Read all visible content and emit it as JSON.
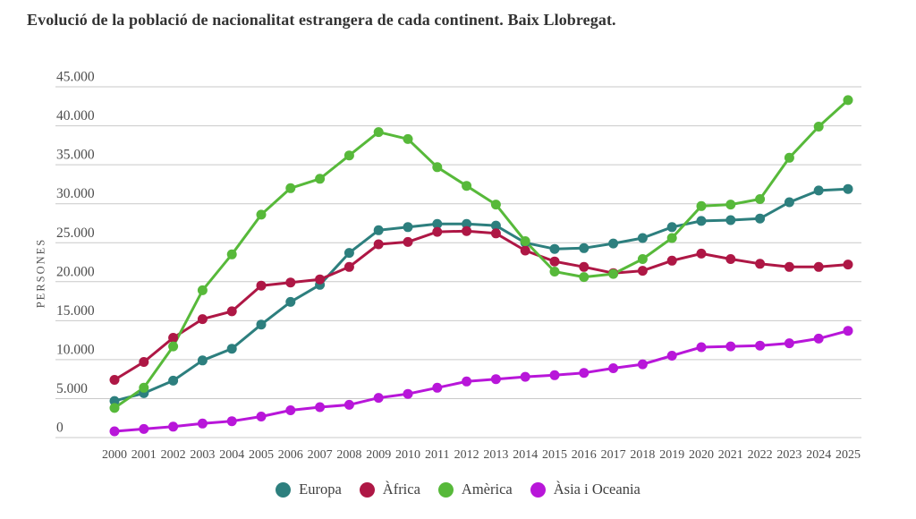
{
  "title": "Evolució de la població de nacionalitat estrangera de cada continent. Baix Llobregat.",
  "y_axis": {
    "label": "PERSONES",
    "tick_labels": [
      "0",
      "5.000",
      "10.000",
      "15.000",
      "20.000",
      "25.000",
      "30.000",
      "35.000",
      "40.000",
      "45.000"
    ]
  },
  "x_axis": {
    "tick_labels": [
      "2000",
      "2001",
      "2002",
      "2003",
      "2004",
      "2005",
      "2006",
      "2007",
      "2008",
      "2009",
      "2010",
      "2011",
      "2012",
      "2013",
      "2014",
      "2015",
      "2016",
      "2017",
      "2018",
      "2019",
      "2020",
      "2021",
      "2022",
      "2023",
      "2024",
      "2025"
    ]
  },
  "colors": {
    "grid": "#c9c9c9",
    "tick_text": "#4d4d4d",
    "europa": "#2d7f7e",
    "africa": "#ae1745",
    "america": "#57b93a",
    "asia_oceania": "#b816d9"
  },
  "chart_data": {
    "type": "line",
    "title": "Evolució de la població de nacionalitat estrangera de cada continent. Baix Llobregat.",
    "xlabel": "",
    "ylabel": "PERSONES",
    "x": [
      2000,
      2001,
      2002,
      2003,
      2004,
      2005,
      2006,
      2007,
      2008,
      2009,
      2010,
      2011,
      2012,
      2013,
      2014,
      2015,
      2016,
      2017,
      2018,
      2019,
      2020,
      2021,
      2022,
      2023,
      2024,
      2025
    ],
    "ylim": [
      0,
      45000
    ],
    "ytick_step": 5000,
    "grid": true,
    "legend_position": "bottom",
    "series": [
      {
        "name": "Europa",
        "color": "#2d7f7e",
        "values": [
          4700,
          5700,
          7300,
          9900,
          11400,
          14500,
          17400,
          19600,
          23700,
          26600,
          27000,
          27400,
          27400,
          27200,
          25000,
          24200,
          24300,
          24900,
          25600,
          27000,
          27800,
          27900,
          28100,
          30200,
          31700,
          31900
        ]
      },
      {
        "name": "Àfrica",
        "color": "#ae1745",
        "values": [
          7400,
          9700,
          12800,
          15200,
          16200,
          19500,
          19900,
          20300,
          21900,
          24800,
          25100,
          26400,
          26500,
          26200,
          24000,
          22600,
          21900,
          21100,
          21400,
          22700,
          23600,
          22900,
          22300,
          21900,
          21900,
          22200
        ]
      },
      {
        "name": "Amèrica",
        "color": "#57b93a",
        "values": [
          3800,
          6400,
          11700,
          18900,
          23500,
          28600,
          32000,
          33200,
          36200,
          39200,
          38300,
          34700,
          32300,
          29900,
          25200,
          21300,
          20600,
          21000,
          22900,
          25600,
          29700,
          29900,
          30600,
          35900,
          39900,
          43300
        ]
      },
      {
        "name": "Àsia i Oceania",
        "color": "#b816d9",
        "values": [
          800,
          1100,
          1400,
          1800,
          2100,
          2700,
          3500,
          3900,
          4200,
          5100,
          5600,
          6400,
          7200,
          7500,
          7800,
          8000,
          8300,
          8900,
          9400,
          10500,
          11600,
          11700,
          11800,
          12100,
          12700,
          13700
        ]
      }
    ]
  }
}
